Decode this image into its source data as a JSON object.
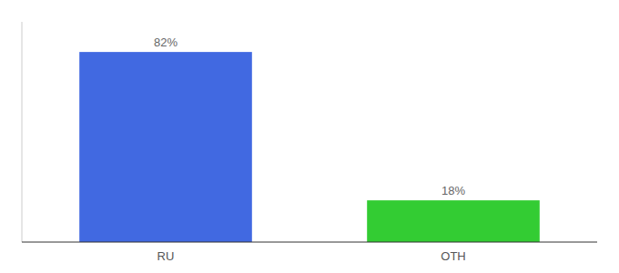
{
  "chart_data": {
    "type": "bar",
    "categories": [
      "RU",
      "OTH"
    ],
    "values": [
      82,
      18
    ],
    "value_labels": [
      "82%",
      "18%"
    ],
    "colors": [
      "#4169e1",
      "#33cc33"
    ],
    "ylim": [
      0,
      95
    ],
    "data_labels": true,
    "tick_labels": "x"
  }
}
